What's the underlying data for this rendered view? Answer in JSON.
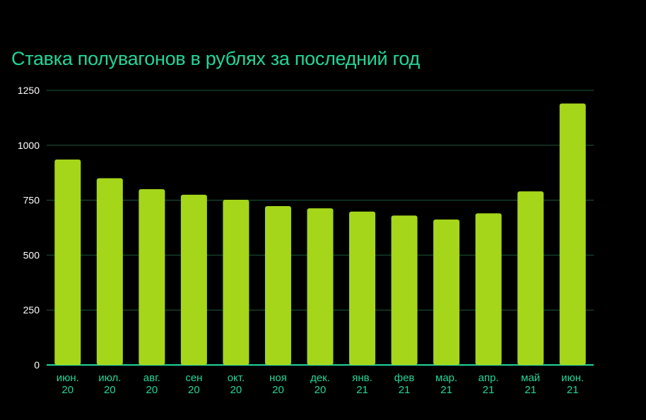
{
  "chart_data": {
    "type": "bar",
    "title": "Ставка полувагонов в рублях за последний год",
    "xlabel": "",
    "ylabel": "",
    "categories": [
      [
        "июн.",
        "20"
      ],
      [
        "июл.",
        "20"
      ],
      [
        "авг.",
        "20"
      ],
      [
        "сен",
        "20"
      ],
      [
        "окт.",
        "20"
      ],
      [
        "ноя",
        "20"
      ],
      [
        "дек.",
        "20"
      ],
      [
        "янв.",
        "21"
      ],
      [
        "фев",
        "21"
      ],
      [
        "мар.",
        "21"
      ],
      [
        "апр.",
        "21"
      ],
      [
        "май",
        "21"
      ],
      [
        "июн.",
        "21"
      ]
    ],
    "values": [
      935,
      850,
      800,
      775,
      752,
      723,
      713,
      698,
      680,
      662,
      690,
      790,
      1190
    ],
    "ylim": [
      0,
      1250
    ],
    "yticks": [
      "0",
      "250",
      "500",
      "750",
      "1000",
      "1250"
    ],
    "grid": true,
    "legend": "none",
    "colors": {
      "bar": "#a6d61a",
      "title": "#23d69a",
      "grid": "#1c5a3c",
      "axis": "#23d69a",
      "ytick": "#ffffff",
      "xtick": "#23d69a"
    }
  }
}
